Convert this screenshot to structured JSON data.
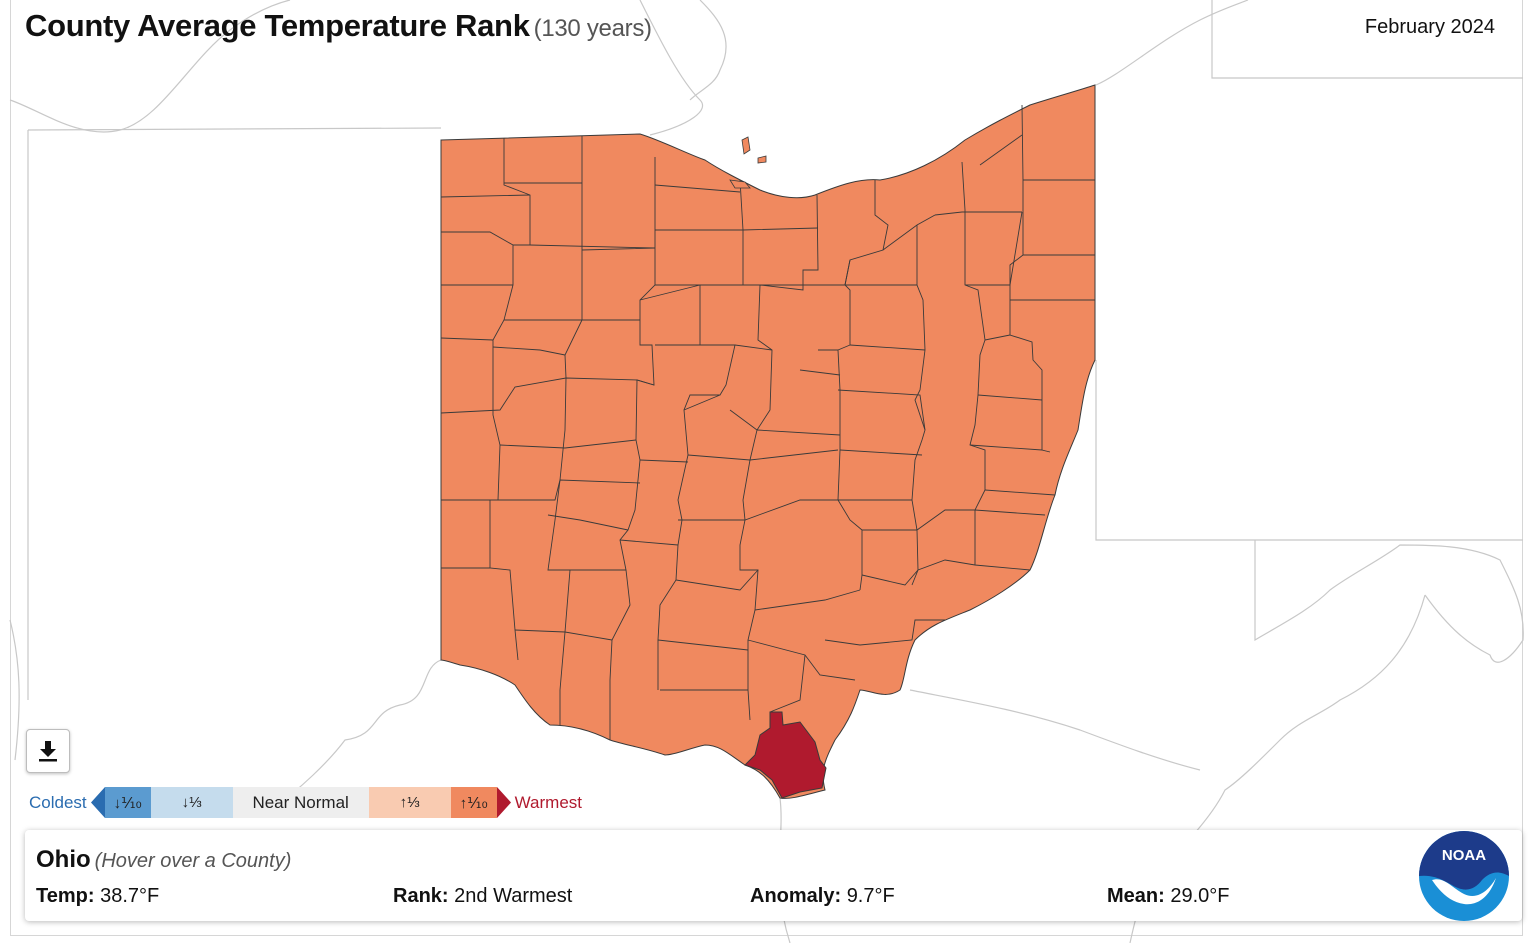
{
  "header": {
    "title": "County Average Temperature Rank",
    "subtitle": "(130 years)",
    "period": "February 2024"
  },
  "colors": {
    "warm_third": "#f0895f",
    "record_warmest": "#b01a2e",
    "county_border": "#3a3a3a",
    "background_lines": "#c8c8c8"
  },
  "map_state": {
    "state": "Ohio",
    "county_category": "Above Normal (warmest third)",
    "highlighted_county_category": "Warmest 10%"
  },
  "legend": {
    "coldest_label": "Coldest",
    "warmest_label": "Warmest",
    "items": [
      {
        "label": "↓⅒",
        "color": "#5b9bd0"
      },
      {
        "label": "↓⅓",
        "color": "#c5dced"
      },
      {
        "label": "Near Normal",
        "color": "#eeeeee"
      },
      {
        "label": "↑⅓",
        "color": "#f9cbb1"
      },
      {
        "label": "↑⅒",
        "color": "#f0895f"
      }
    ]
  },
  "info": {
    "name": "Ohio",
    "hint": "(Hover over a County)",
    "temp_label": "Temp:",
    "temp_value": "38.7°F",
    "rank_label": "Rank:",
    "rank_value": "2nd Warmest",
    "anomaly_label": "Anomaly:",
    "anomaly_value": "9.7°F",
    "mean_label": "Mean:",
    "mean_value": "29.0°F"
  },
  "icons": {
    "download": "download-icon",
    "logo": "noaa-logo"
  },
  "logo_text": "NOAA"
}
